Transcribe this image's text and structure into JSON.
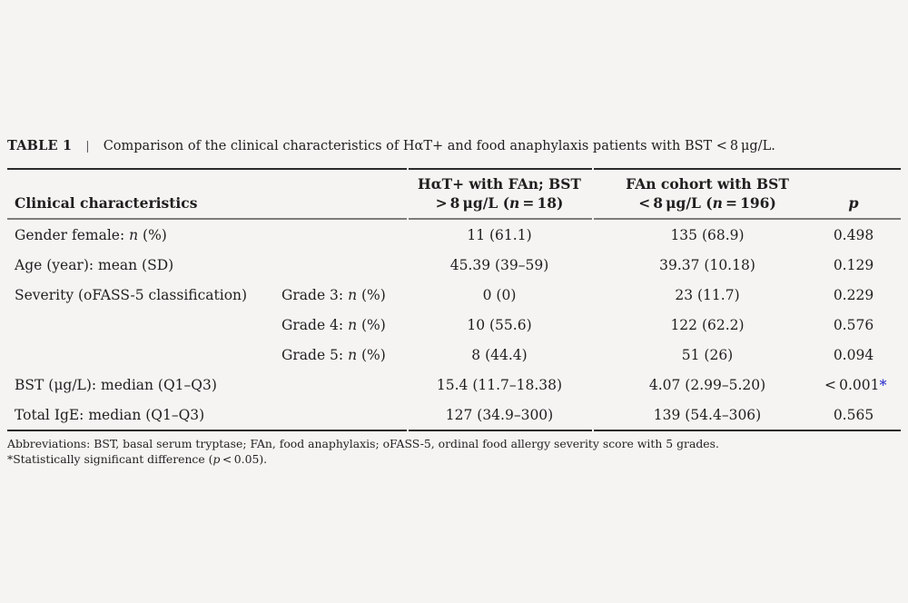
{
  "colors": {
    "background": "#f5f4f2",
    "text": "#1f1f1f",
    "rule_dark": "#2b2b2b",
    "rule_gray": "#7d7d7d",
    "significant_asterisk": "#3a3fd0"
  },
  "title": {
    "label": "TABLE 1",
    "separator": "|",
    "caption": "Comparison of the clinical characteristics of HαT+ and food anaphylaxis patients with BST < 8 μg/L."
  },
  "header": {
    "col1": "Clinical characteristics",
    "col2_line1": "HαT+ with FAn; BST",
    "col2_line2_pre": "> 8 μg/L (",
    "col2_line2_it": "n",
    "col2_line2_post": " = 18)",
    "col3_line1": "FAn cohort with BST",
    "col3_line2_pre": "< 8 μg/L (",
    "col3_line2_it": "n",
    "col3_line2_post": " = 196)",
    "col4": "p"
  },
  "rows": [
    {
      "label_pre": "Gender female: ",
      "label_it": "n",
      "label_post": " (%)",
      "sub_pre": "",
      "sub_it": "",
      "sub_post": "",
      "v1": "11 (61.1)",
      "v2": "135 (68.9)",
      "p": "0.498",
      "sig": ""
    },
    {
      "label_pre": "Age (year): mean (SD)",
      "label_it": "",
      "label_post": "",
      "sub_pre": "",
      "sub_it": "",
      "sub_post": "",
      "v1": "45.39 (39–59)",
      "v2": "39.37 (10.18)",
      "p": "0.129",
      "sig": ""
    },
    {
      "label_pre": "Severity (oFASS-5 classification)",
      "label_it": "",
      "label_post": "",
      "sub_pre": "Grade 3: ",
      "sub_it": "n",
      "sub_post": " (%)",
      "v1": "0 (0)",
      "v2": "23 (11.7)",
      "p": "0.229",
      "sig": ""
    },
    {
      "label_pre": "",
      "label_it": "",
      "label_post": "",
      "sub_pre": "Grade 4: ",
      "sub_it": "n",
      "sub_post": " (%)",
      "v1": "10 (55.6)",
      "v2": "122 (62.2)",
      "p": "0.576",
      "sig": ""
    },
    {
      "label_pre": "",
      "label_it": "",
      "label_post": "",
      "sub_pre": "Grade 5: ",
      "sub_it": "n",
      "sub_post": " (%)",
      "v1": "8 (44.4)",
      "v2": "51 (26)",
      "p": "0.094",
      "sig": ""
    },
    {
      "label_pre": "BST (μg/L): median (Q1–Q3)",
      "label_it": "",
      "label_post": "",
      "sub_pre": "",
      "sub_it": "",
      "sub_post": "",
      "v1": "15.4 (11.7–18.38)",
      "v2": "4.07 (2.99–5.20)",
      "p": "< 0.001",
      "sig": "*"
    },
    {
      "label_pre": "Total IgE: median (Q1–Q3)",
      "label_it": "",
      "label_post": "",
      "sub_pre": "",
      "sub_it": "",
      "sub_post": "",
      "v1": "127 (34.9–300)",
      "v2": "139 (54.4–306)",
      "p": "0.565",
      "sig": ""
    }
  ],
  "footnotes": {
    "line1": "Abbreviations: BST, basal serum tryptase; FAn, food anaphylaxis; oFASS-5, ordinal food allergy severity score with 5 grades.",
    "line2_pre": "*Statistically significant difference (",
    "line2_it": "p",
    "line2_post": " < 0.05)."
  },
  "chart_data": {
    "type": "table",
    "title": "TABLE 1 | Comparison of the clinical characteristics of HαT+ and food anaphylaxis patients with BST <8 μg/L.",
    "columns": [
      "Clinical characteristics",
      "",
      "HαT+ with FAn; BST >8 μg/L (n=18)",
      "FAn cohort with BST <8 μg/L (n=196)",
      "p"
    ],
    "rows": [
      [
        "Gender female: n (%)",
        "",
        "11 (61.1)",
        "135 (68.9)",
        "0.498"
      ],
      [
        "Age (year): mean (SD)",
        "",
        "45.39 (39–59)",
        "39.37 (10.18)",
        "0.129"
      ],
      [
        "Severity (oFASS-5 classification)",
        "Grade 3: n (%)",
        "0 (0)",
        "23 (11.7)",
        "0.229"
      ],
      [
        "",
        "Grade 4: n (%)",
        "10 (55.6)",
        "122 (62.2)",
        "0.576"
      ],
      [
        "",
        "Grade 5: n (%)",
        "8 (44.4)",
        "51 (26)",
        "0.094"
      ],
      [
        "BST (μg/L): median (Q1–Q3)",
        "",
        "15.4 (11.7–18.38)",
        "4.07 (2.99–5.20)",
        "<0.001*"
      ],
      [
        "Total IgE: median (Q1–Q3)",
        "",
        "127 (34.9–300)",
        "139 (54.4–306)",
        "0.565"
      ]
    ],
    "footnotes": [
      "Abbreviations: BST, basal serum tryptase; FAn, food anaphylaxis; oFASS-5, ordinal food allergy severity score with 5 grades.",
      "*Statistically significant difference (p < 0.05)."
    ]
  }
}
